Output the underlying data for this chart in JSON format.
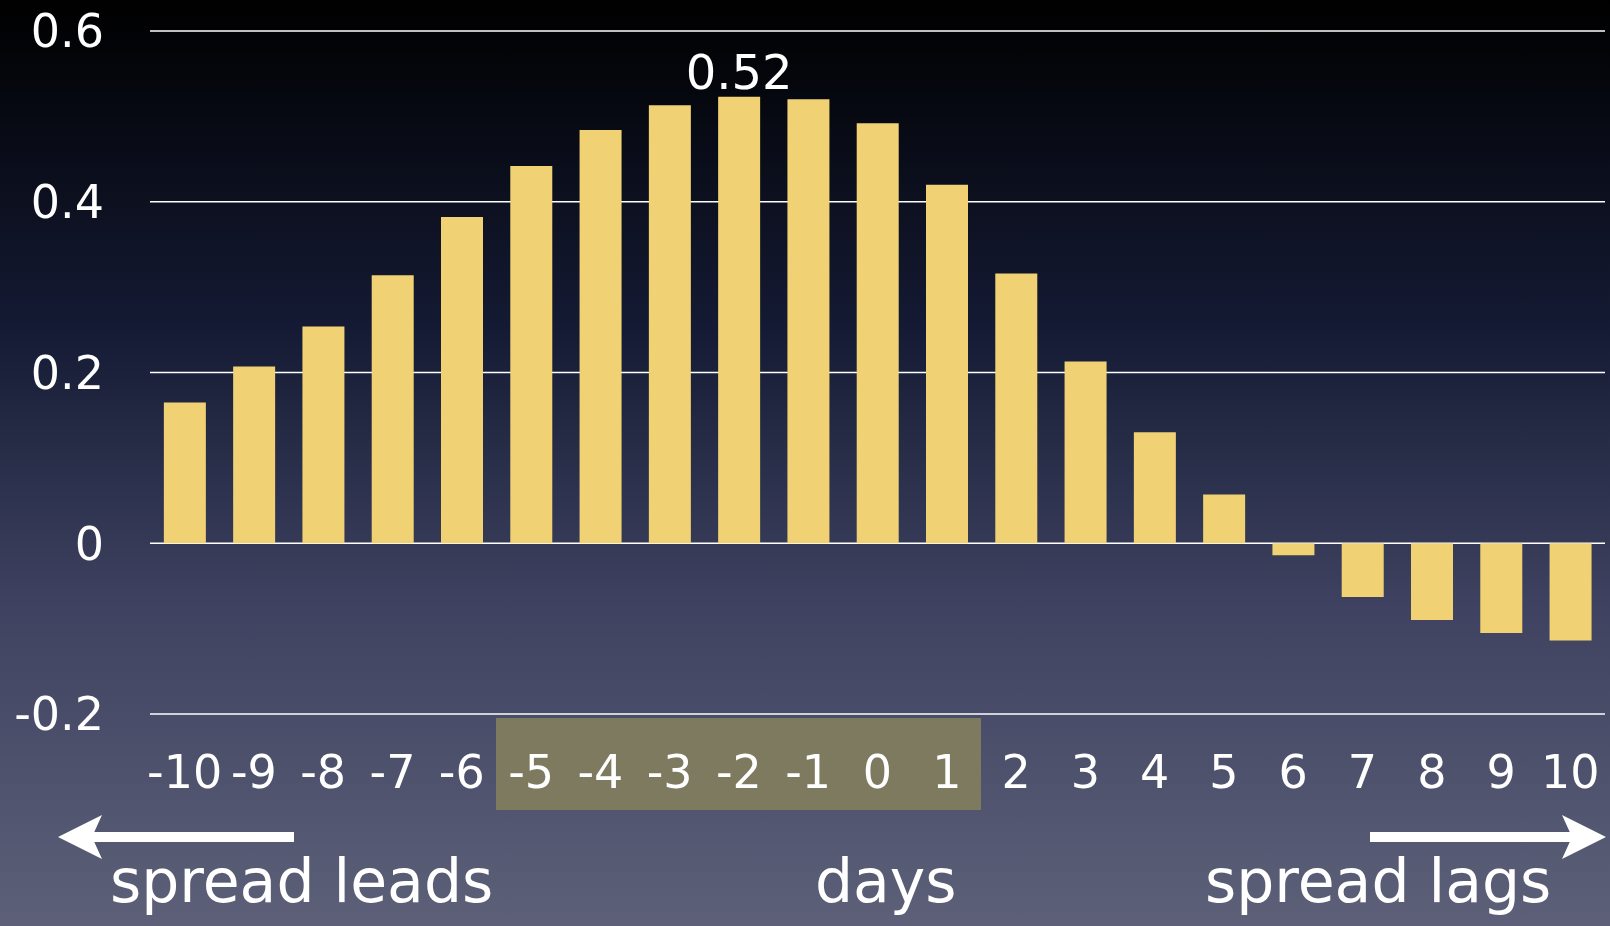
{
  "chart_data": {
    "type": "bar",
    "xlabel": "days",
    "categories": [
      "-10",
      "-9",
      "-8",
      "-7",
      "-6",
      "-5",
      "-4",
      "-3",
      "-2",
      "-1",
      "0",
      "1",
      "2",
      "3",
      "4",
      "5",
      "6",
      "7",
      "8",
      "9",
      "10"
    ],
    "values": [
      0.165,
      0.207,
      0.254,
      0.314,
      0.382,
      0.442,
      0.484,
      0.513,
      0.523,
      0.52,
      0.492,
      0.42,
      0.316,
      0.213,
      0.13,
      0.057,
      -0.014,
      -0.063,
      -0.09,
      -0.105,
      -0.114
    ],
    "value_labels": [
      null,
      null,
      null,
      null,
      null,
      null,
      null,
      null,
      "0.52",
      null,
      null,
      null,
      null,
      null,
      null,
      null,
      null,
      null,
      null,
      null,
      null
    ],
    "color": "#f0d274",
    "ylim": [
      -0.2,
      0.6
    ],
    "yticks": [
      -0.2,
      0,
      0.2,
      0.4,
      0.6
    ],
    "grid": "y",
    "annotations": [
      "spread leads",
      "spread lags"
    ]
  }
}
